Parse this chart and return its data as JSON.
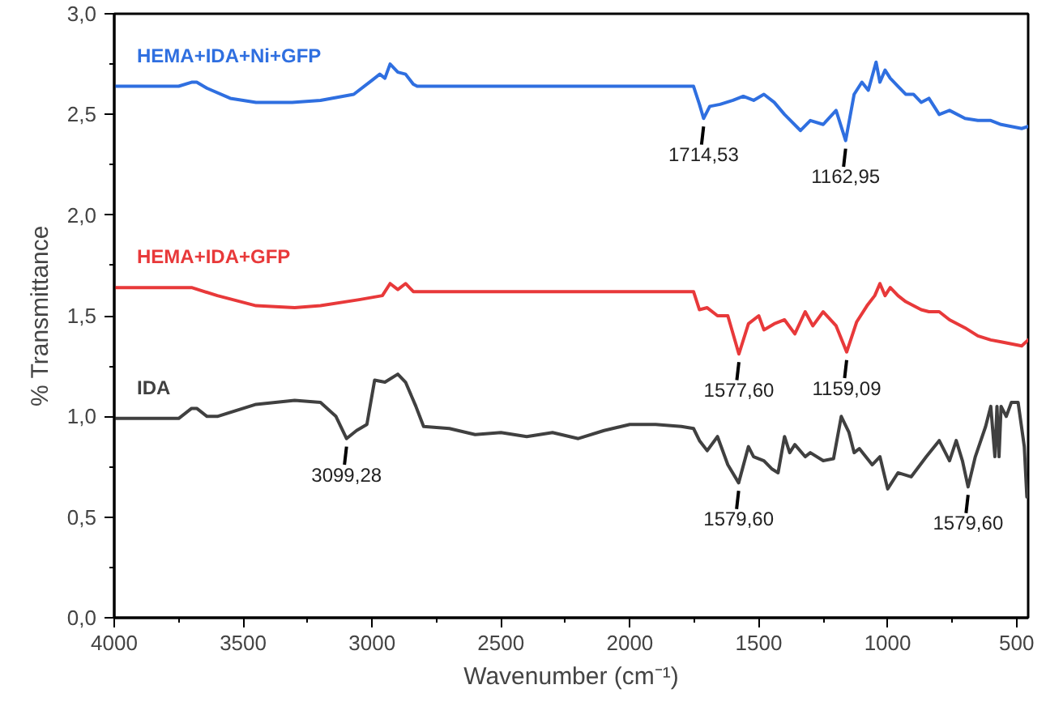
{
  "chart_data": {
    "type": "line",
    "xlabel": "Wavenumber (cm⁻¹)",
    "ylabel": "% Transmittance",
    "xlim": [
      4000,
      455
    ],
    "ylim": [
      0,
      3
    ],
    "xticks": [
      4000,
      3500,
      3000,
      2500,
      2000,
      1500,
      1000,
      500
    ],
    "yticks": [
      {
        "value": 0,
        "label": "0,0"
      },
      {
        "value": 0.5,
        "label": "0,5"
      },
      {
        "value": 1,
        "label": "1,0"
      },
      {
        "value": 1.5,
        "label": "1,5"
      },
      {
        "value": 2,
        "label": "2,0"
      },
      {
        "value": 2.5,
        "label": "2,5"
      },
      {
        "value": 3,
        "label": "3,0"
      }
    ],
    "grid": false,
    "series": [
      {
        "name": "HEMA+IDA+Ni+GFP",
        "color": "#2f6fe0",
        "x": [
          4000,
          3750,
          3700,
          3680,
          3640,
          3550,
          3450,
          3310,
          3200,
          3071,
          3000,
          2970,
          2950,
          2930,
          2900,
          2870,
          2840,
          2825,
          2500,
          2000,
          1753,
          1730,
          1714,
          1690,
          1650,
          1600,
          1560,
          1520,
          1480,
          1440,
          1400,
          1338,
          1300,
          1250,
          1200,
          1163,
          1130,
          1100,
          1075,
          1045,
          1030,
          1010,
          990,
          960,
          930,
          900,
          870,
          840,
          800,
          760,
          700,
          650,
          600,
          560,
          520,
          480,
          455
        ],
        "values": [
          2.64,
          2.64,
          2.66,
          2.66,
          2.63,
          2.58,
          2.56,
          2.56,
          2.57,
          2.6,
          2.67,
          2.7,
          2.68,
          2.75,
          2.71,
          2.7,
          2.65,
          2.64,
          2.64,
          2.64,
          2.64,
          2.55,
          2.48,
          2.54,
          2.55,
          2.57,
          2.59,
          2.57,
          2.6,
          2.56,
          2.5,
          2.42,
          2.47,
          2.45,
          2.52,
          2.37,
          2.6,
          2.66,
          2.62,
          2.76,
          2.66,
          2.72,
          2.68,
          2.64,
          2.6,
          2.6,
          2.56,
          2.58,
          2.5,
          2.52,
          2.48,
          2.47,
          2.47,
          2.45,
          2.44,
          2.43,
          2.44
        ]
      },
      {
        "name": "HEMA+IDA+GFP",
        "color": "#e8393a",
        "x": [
          4000,
          3750,
          3700,
          3600,
          3450,
          3300,
          3200,
          3050,
          2960,
          2930,
          2900,
          2870,
          2840,
          2500,
          2000,
          1753,
          1730,
          1700,
          1660,
          1620,
          1577,
          1540,
          1500,
          1480,
          1440,
          1400,
          1360,
          1320,
          1290,
          1250,
          1200,
          1159,
          1120,
          1080,
          1050,
          1030,
          1010,
          990,
          960,
          930,
          900,
          870,
          840,
          800,
          760,
          700,
          650,
          600,
          560,
          520,
          480,
          455
        ],
        "values": [
          1.64,
          1.64,
          1.64,
          1.6,
          1.55,
          1.54,
          1.55,
          1.58,
          1.6,
          1.66,
          1.63,
          1.66,
          1.62,
          1.62,
          1.62,
          1.62,
          1.53,
          1.54,
          1.5,
          1.5,
          1.31,
          1.46,
          1.5,
          1.43,
          1.46,
          1.48,
          1.41,
          1.52,
          1.45,
          1.52,
          1.45,
          1.32,
          1.47,
          1.55,
          1.6,
          1.66,
          1.6,
          1.64,
          1.6,
          1.57,
          1.55,
          1.53,
          1.52,
          1.52,
          1.48,
          1.44,
          1.4,
          1.38,
          1.37,
          1.36,
          1.35,
          1.38
        ]
      },
      {
        "name": "IDA",
        "color": "#404040",
        "x": [
          4000,
          3750,
          3700,
          3680,
          3640,
          3600,
          3450,
          3300,
          3200,
          3140,
          3099,
          3060,
          3020,
          2990,
          2950,
          2900,
          2870,
          2830,
          2800,
          2700,
          2600,
          2500,
          2400,
          2300,
          2200,
          2100,
          2000,
          1900,
          1800,
          1753,
          1730,
          1700,
          1660,
          1620,
          1578,
          1540,
          1520,
          1480,
          1450,
          1425,
          1400,
          1380,
          1360,
          1320,
          1300,
          1250,
          1210,
          1180,
          1150,
          1130,
          1110,
          1060,
          1030,
          1000,
          960,
          909,
          850,
          800,
          760,
          734,
          710,
          688,
          660,
          620,
          600,
          584,
          576,
          568,
          560,
          540,
          520,
          494,
          470,
          460
        ],
        "values": [
          0.99,
          0.99,
          1.04,
          1.04,
          1.0,
          1.0,
          1.06,
          1.08,
          1.07,
          1.0,
          0.89,
          0.93,
          0.96,
          1.18,
          1.17,
          1.21,
          1.17,
          1.05,
          0.95,
          0.94,
          0.91,
          0.92,
          0.9,
          0.92,
          0.89,
          0.93,
          0.96,
          0.96,
          0.95,
          0.94,
          0.88,
          0.83,
          0.9,
          0.76,
          0.67,
          0.85,
          0.8,
          0.78,
          0.74,
          0.72,
          0.9,
          0.82,
          0.86,
          0.8,
          0.82,
          0.78,
          0.79,
          1.0,
          0.92,
          0.82,
          0.84,
          0.76,
          0.8,
          0.64,
          0.72,
          0.7,
          0.8,
          0.88,
          0.78,
          0.88,
          0.78,
          0.65,
          0.8,
          0.95,
          1.05,
          0.8,
          1.05,
          0.8,
          1.05,
          1.0,
          1.07,
          1.07,
          0.85,
          0.6
        ]
      }
    ],
    "annotations": [
      {
        "text": "1714,53",
        "x": 1714,
        "y": 2.48
      },
      {
        "text": "1162,95",
        "x": 1163,
        "y": 2.37
      },
      {
        "text": "1577,60",
        "x": 1577,
        "y": 1.31
      },
      {
        "text": "1159,09",
        "x": 1159,
        "y": 1.32
      },
      {
        "text": "3099,28",
        "x": 3099,
        "y": 0.89
      },
      {
        "text": "1579,60",
        "x": 1578,
        "y": 0.67
      },
      {
        "text": "1579,60",
        "x": 688,
        "y": 0.65
      }
    ]
  }
}
